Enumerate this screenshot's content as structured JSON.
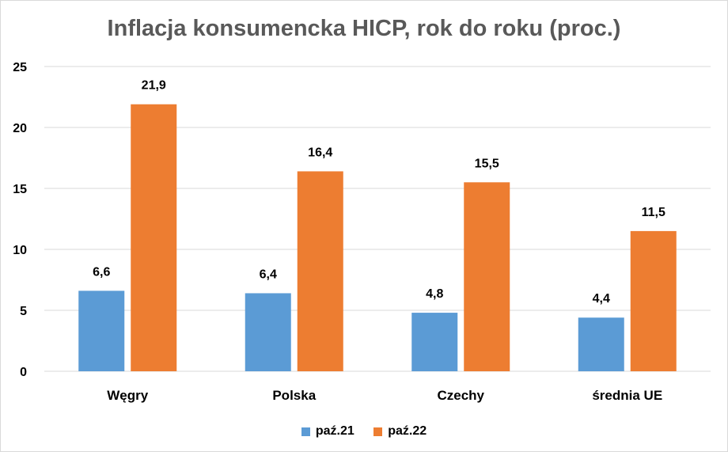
{
  "chart_data": {
    "type": "bar",
    "title": "Inflacja konsumencka HICP, rok do roku (proc.)",
    "categories": [
      "Węgry",
      "Polska",
      "Czechy",
      "średnia UE"
    ],
    "series": [
      {
        "name": "paź.21",
        "color": "#5B9BD5",
        "values": [
          6.6,
          6.4,
          4.8,
          4.4
        ],
        "labels": [
          "6,6",
          "6,4",
          "4,8",
          "4,4"
        ]
      },
      {
        "name": "paź.22",
        "color": "#ED7D31",
        "values": [
          21.9,
          16.4,
          15.5,
          11.5
        ],
        "labels": [
          "21,9",
          "16,4",
          "15,5",
          "11,5"
        ]
      }
    ],
    "ylim": [
      0,
      25
    ],
    "yticks": [
      0,
      5,
      10,
      15,
      20,
      25
    ],
    "grid": true,
    "legend_position": "bottom",
    "gridline_color": "#d9d9d9"
  }
}
